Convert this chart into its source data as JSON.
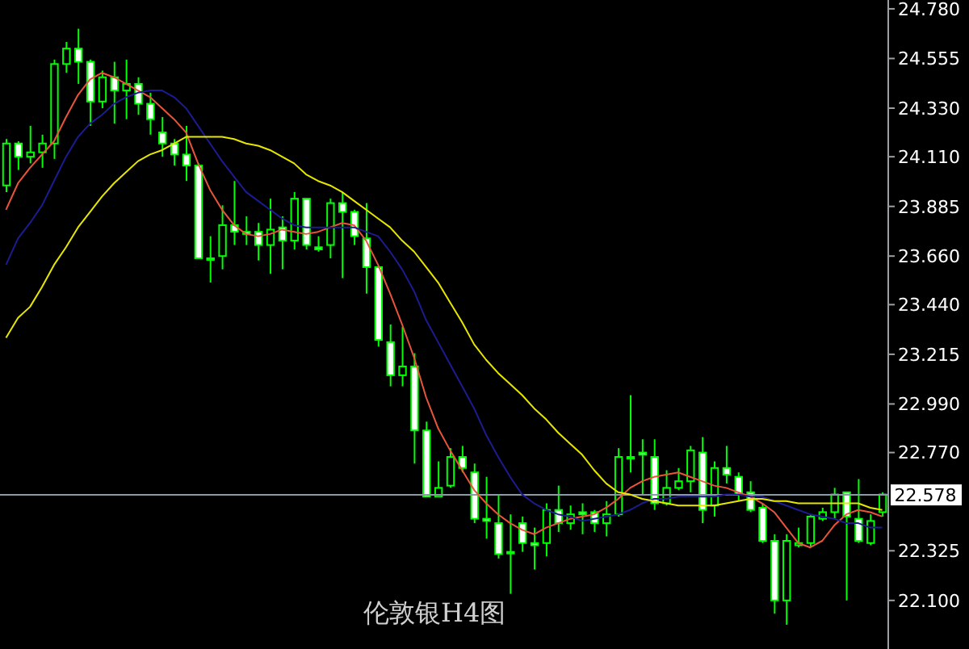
{
  "chart_data": {
    "type": "candlestick",
    "title": "伦敦银H4图",
    "color": "#00ff00",
    "tick_labels": "y",
    "categories": [
      null,
      null,
      null,
      null,
      null,
      null,
      null,
      null,
      null,
      null,
      null,
      null,
      null,
      null,
      null,
      null,
      null,
      null,
      null,
      null,
      null,
      null,
      null,
      null,
      null,
      null,
      null,
      null,
      null,
      null,
      null,
      null,
      null,
      null,
      null,
      null,
      null,
      null,
      null,
      null,
      null,
      null,
      null,
      null,
      null,
      null,
      null,
      null,
      null,
      null,
      null,
      null,
      null,
      null,
      null,
      null,
      null,
      null,
      null,
      null,
      null,
      null,
      null,
      null,
      null,
      null,
      null,
      null,
      null,
      null,
      null,
      null,
      null,
      null
    ],
    "ohlc": [
      [
        23.98,
        24.19,
        23.95,
        24.17
      ],
      [
        24.17,
        24.18,
        24.05,
        24.11
      ],
      [
        24.11,
        24.25,
        24.08,
        24.13
      ],
      [
        24.13,
        24.21,
        24.06,
        24.17
      ],
      [
        24.17,
        24.55,
        24.1,
        24.53
      ],
      [
        24.53,
        24.63,
        24.49,
        24.6
      ],
      [
        24.6,
        24.69,
        24.44,
        24.54
      ],
      [
        24.54,
        24.55,
        24.25,
        24.36
      ],
      [
        24.36,
        24.5,
        24.33,
        24.47
      ],
      [
        24.47,
        24.54,
        24.26,
        24.41
      ],
      [
        24.41,
        24.55,
        24.28,
        24.44
      ],
      [
        24.44,
        24.47,
        24.3,
        24.35
      ],
      [
        24.35,
        24.4,
        24.21,
        24.28
      ],
      [
        24.22,
        24.29,
        24.11,
        24.17
      ],
      [
        24.17,
        24.19,
        24.07,
        24.12
      ],
      [
        24.12,
        24.25,
        24.0,
        24.07
      ],
      [
        24.07,
        24.08,
        23.65,
        23.65
      ],
      [
        23.65,
        23.75,
        23.54,
        23.65
      ],
      [
        23.66,
        23.89,
        23.6,
        23.8
      ],
      [
        23.8,
        24.0,
        23.71,
        23.77
      ],
      [
        23.77,
        23.84,
        23.71,
        23.76
      ],
      [
        23.77,
        23.81,
        23.64,
        23.71
      ],
      [
        23.71,
        23.92,
        23.58,
        23.78
      ],
      [
        23.79,
        23.84,
        23.6,
        23.73
      ],
      [
        23.73,
        23.95,
        23.69,
        23.92
      ],
      [
        23.92,
        23.92,
        23.69,
        23.71
      ],
      [
        23.7,
        23.75,
        23.68,
        23.69
      ],
      [
        23.71,
        23.92,
        23.65,
        23.9
      ],
      [
        23.9,
        23.95,
        23.56,
        23.86
      ],
      [
        23.86,
        23.87,
        23.71,
        23.75
      ],
      [
        23.74,
        23.9,
        23.49,
        23.61
      ],
      [
        23.61,
        23.61,
        23.25,
        23.28
      ],
      [
        23.27,
        23.35,
        23.07,
        23.12
      ],
      [
        23.12,
        23.34,
        23.07,
        23.16
      ],
      [
        23.16,
        23.22,
        22.72,
        22.87
      ],
      [
        22.87,
        22.91,
        22.57,
        22.57
      ],
      [
        22.57,
        22.73,
        22.57,
        22.61
      ],
      [
        22.62,
        22.79,
        22.61,
        22.75
      ],
      [
        22.75,
        22.8,
        22.68,
        22.7
      ],
      [
        22.68,
        22.72,
        22.45,
        22.47
      ],
      [
        22.47,
        22.66,
        22.38,
        22.46
      ],
      [
        22.45,
        22.58,
        22.29,
        22.31
      ],
      [
        22.32,
        22.49,
        22.13,
        22.32
      ],
      [
        22.45,
        22.48,
        22.32,
        22.36
      ],
      [
        22.36,
        22.43,
        22.24,
        22.35
      ],
      [
        22.36,
        22.54,
        22.3,
        22.51
      ],
      [
        22.51,
        22.62,
        22.41,
        22.45
      ],
      [
        22.45,
        22.53,
        22.42,
        22.49
      ],
      [
        22.5,
        22.54,
        22.4,
        22.49
      ],
      [
        22.5,
        22.51,
        22.41,
        22.45
      ],
      [
        22.45,
        22.55,
        22.39,
        22.49
      ],
      [
        22.49,
        22.79,
        22.48,
        22.75
      ],
      [
        22.75,
        23.03,
        22.68,
        22.75
      ],
      [
        22.77,
        22.83,
        22.58,
        22.76
      ],
      [
        22.75,
        22.83,
        22.51,
        22.54
      ],
      [
        22.54,
        22.69,
        22.53,
        22.61
      ],
      [
        22.61,
        22.7,
        22.6,
        22.64
      ],
      [
        22.64,
        22.8,
        22.59,
        22.78
      ],
      [
        22.77,
        22.84,
        22.45,
        22.51
      ],
      [
        22.53,
        22.73,
        22.48,
        22.7
      ],
      [
        22.7,
        22.8,
        22.63,
        22.67
      ],
      [
        22.66,
        22.68,
        22.55,
        22.58
      ],
      [
        22.59,
        22.64,
        22.5,
        22.51
      ],
      [
        22.52,
        22.54,
        22.36,
        22.37
      ],
      [
        22.37,
        22.4,
        22.04,
        22.1
      ],
      [
        22.1,
        22.4,
        21.99,
        22.37
      ],
      [
        22.35,
        22.43,
        22.34,
        22.36
      ],
      [
        22.36,
        22.49,
        22.34,
        22.48
      ],
      [
        22.47,
        22.52,
        22.46,
        22.5
      ],
      [
        22.5,
        22.61,
        22.47,
        22.58
      ],
      [
        22.59,
        22.59,
        22.1,
        22.48
      ],
      [
        22.47,
        22.65,
        22.36,
        22.37
      ],
      [
        22.36,
        22.49,
        22.35,
        22.46
      ],
      [
        22.5,
        22.59,
        22.48,
        22.58
      ]
    ],
    "series": [
      {
        "type": "line",
        "color": "#e8553a",
        "values": [
          23.87,
          23.99,
          24.06,
          24.12,
          24.18,
          24.29,
          24.39,
          24.46,
          24.49,
          24.47,
          24.44,
          24.41,
          24.38,
          24.33,
          24.28,
          24.22,
          24.08,
          23.96,
          23.87,
          23.8,
          23.76,
          23.75,
          23.76,
          23.78,
          23.77,
          23.76,
          23.77,
          23.79,
          23.81,
          23.8,
          23.73,
          23.62,
          23.49,
          23.35,
          23.2,
          23.02,
          22.88,
          22.78,
          22.69,
          22.6,
          22.54,
          22.49,
          22.45,
          22.42,
          22.4,
          22.43,
          22.45,
          22.47,
          22.48,
          22.49,
          22.52,
          22.56,
          22.61,
          22.64,
          22.66,
          22.67,
          22.68,
          22.66,
          22.64,
          22.62,
          22.61,
          22.59,
          22.57,
          22.54,
          22.5,
          22.43,
          22.36,
          22.34,
          22.37,
          22.44,
          22.49,
          22.51,
          22.5,
          22.48
        ]
      },
      {
        "type": "line",
        "color": "#1c1c90",
        "values": [
          23.62,
          23.74,
          23.81,
          23.89,
          24.0,
          24.11,
          24.2,
          24.26,
          24.3,
          24.35,
          24.38,
          24.4,
          24.41,
          24.41,
          24.38,
          24.33,
          24.25,
          24.17,
          24.09,
          24.02,
          23.95,
          23.91,
          23.87,
          23.83,
          23.8,
          23.79,
          23.79,
          23.79,
          23.79,
          23.79,
          23.77,
          23.75,
          23.68,
          23.6,
          23.5,
          23.37,
          23.27,
          23.17,
          23.07,
          22.97,
          22.85,
          22.75,
          22.66,
          22.58,
          22.54,
          22.51,
          22.49,
          22.48,
          22.46,
          22.47,
          22.48,
          22.49,
          22.51,
          22.54,
          22.56,
          22.56,
          22.57,
          22.57,
          22.57,
          22.57,
          22.58,
          22.58,
          22.57,
          22.57,
          22.55,
          22.53,
          22.51,
          22.49,
          22.48,
          22.47,
          22.45,
          22.45,
          22.43,
          22.43
        ]
      },
      {
        "type": "line",
        "color": "#e6e600",
        "values": [
          23.29,
          23.38,
          23.43,
          23.52,
          23.62,
          23.7,
          23.79,
          23.86,
          23.93,
          23.99,
          24.04,
          24.09,
          24.12,
          24.14,
          24.17,
          24.2,
          24.2,
          24.2,
          24.2,
          24.19,
          24.17,
          24.16,
          24.14,
          24.11,
          24.08,
          24.03,
          24.0,
          23.98,
          23.95,
          23.91,
          23.87,
          23.83,
          23.79,
          23.73,
          23.68,
          23.61,
          23.54,
          23.45,
          23.36,
          23.26,
          23.19,
          23.13,
          23.08,
          23.03,
          22.97,
          22.92,
          22.86,
          22.81,
          22.76,
          22.69,
          22.63,
          22.59,
          22.58,
          22.56,
          22.55,
          22.54,
          22.53,
          22.53,
          22.53,
          22.53,
          22.54,
          22.55,
          22.56,
          22.56,
          22.55,
          22.55,
          22.54,
          22.54,
          22.54,
          22.54,
          22.54,
          22.54,
          22.52,
          22.51
        ]
      }
    ],
    "ylim": [
      21.88,
      24.82
    ],
    "yticks": [
      {
        "value": 24.78,
        "label": "24.780"
      },
      {
        "value": 24.555,
        "label": "24.555"
      },
      {
        "value": 24.33,
        "label": "24.330"
      },
      {
        "value": 24.11,
        "label": "24.110"
      },
      {
        "value": 23.885,
        "label": "23.885"
      },
      {
        "value": 23.66,
        "label": "23.660"
      },
      {
        "value": 23.44,
        "label": "23.440"
      },
      {
        "value": 23.215,
        "label": "23.215"
      },
      {
        "value": 22.99,
        "label": "22.990"
      },
      {
        "value": 22.77,
        "label": "22.770"
      },
      {
        "value": 22.325,
        "label": "22.325"
      },
      {
        "value": 22.1,
        "label": "22.100"
      }
    ],
    "ref_lines": [
      {
        "axis": "y",
        "value": 22.578,
        "label": "22.578",
        "color": "#8c9aa6"
      }
    ]
  }
}
